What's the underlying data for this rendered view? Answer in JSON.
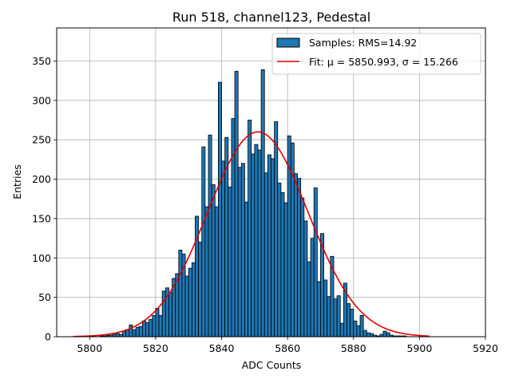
{
  "chart_data": {
    "type": "bar",
    "title": "Run 518, channel123, Pedestal",
    "xlabel": "ADC Counts",
    "ylabel": "Entries",
    "xlim": [
      5790,
      5920
    ],
    "ylim": [
      0,
      392
    ],
    "xticks": [
      5800,
      5820,
      5840,
      5860,
      5880,
      5900,
      5920
    ],
    "yticks": [
      0,
      50,
      100,
      150,
      200,
      250,
      300,
      350
    ],
    "grid": true,
    "legend_position": "top-right",
    "histogram": {
      "name": "Samples: RMS=14.92",
      "color": "#1f77b4",
      "bin_width": 1,
      "x": [
        5803,
        5804,
        5805,
        5806,
        5807,
        5808,
        5809,
        5810,
        5811,
        5812,
        5813,
        5814,
        5815,
        5816,
        5817,
        5818,
        5819,
        5820,
        5821,
        5822,
        5823,
        5824,
        5825,
        5826,
        5827,
        5828,
        5829,
        5830,
        5831,
        5832,
        5833,
        5834,
        5835,
        5836,
        5837,
        5838,
        5839,
        5840,
        5841,
        5842,
        5843,
        5844,
        5845,
        5846,
        5847,
        5848,
        5849,
        5850,
        5851,
        5852,
        5853,
        5854,
        5855,
        5856,
        5857,
        5858,
        5859,
        5860,
        5861,
        5862,
        5863,
        5864,
        5865,
        5866,
        5867,
        5868,
        5869,
        5870,
        5871,
        5872,
        5873,
        5874,
        5875,
        5876,
        5877,
        5878,
        5879,
        5880,
        5881,
        5882,
        5883,
        5884,
        5885,
        5886,
        5887,
        5888,
        5889,
        5890,
        5891,
        5892,
        5893,
        5894,
        5895,
        5896,
        5897,
        5898,
        5899
      ],
      "values": [
        1,
        1,
        2,
        2,
        3,
        4,
        3,
        7,
        9,
        15,
        9,
        12,
        13,
        20,
        18,
        22,
        27,
        36,
        27,
        58,
        62,
        56,
        74,
        80,
        110,
        105,
        77,
        87,
        94,
        153,
        120,
        241,
        165,
        256,
        193,
        165,
        323,
        223,
        253,
        190,
        277,
        337,
        215,
        220,
        171,
        275,
        232,
        244,
        237,
        339,
        208,
        231,
        226,
        273,
        195,
        183,
        170,
        255,
        246,
        207,
        201,
        176,
        147,
        95,
        125,
        189,
        70,
        131,
        72,
        51,
        102,
        48,
        52,
        17,
        68,
        42,
        35,
        20,
        14,
        27,
        8,
        5,
        4,
        2,
        1,
        3,
        7,
        5,
        2,
        1,
        1,
        1,
        1,
        0,
        0,
        0,
        0
      ]
    },
    "fit": {
      "name": "Fit: μ = 5850.993, σ = 15.266",
      "color": "#e00000",
      "mu": 5850.993,
      "sigma": 15.266,
      "amplitude": 260,
      "x_range": [
        5795,
        5903
      ]
    }
  }
}
